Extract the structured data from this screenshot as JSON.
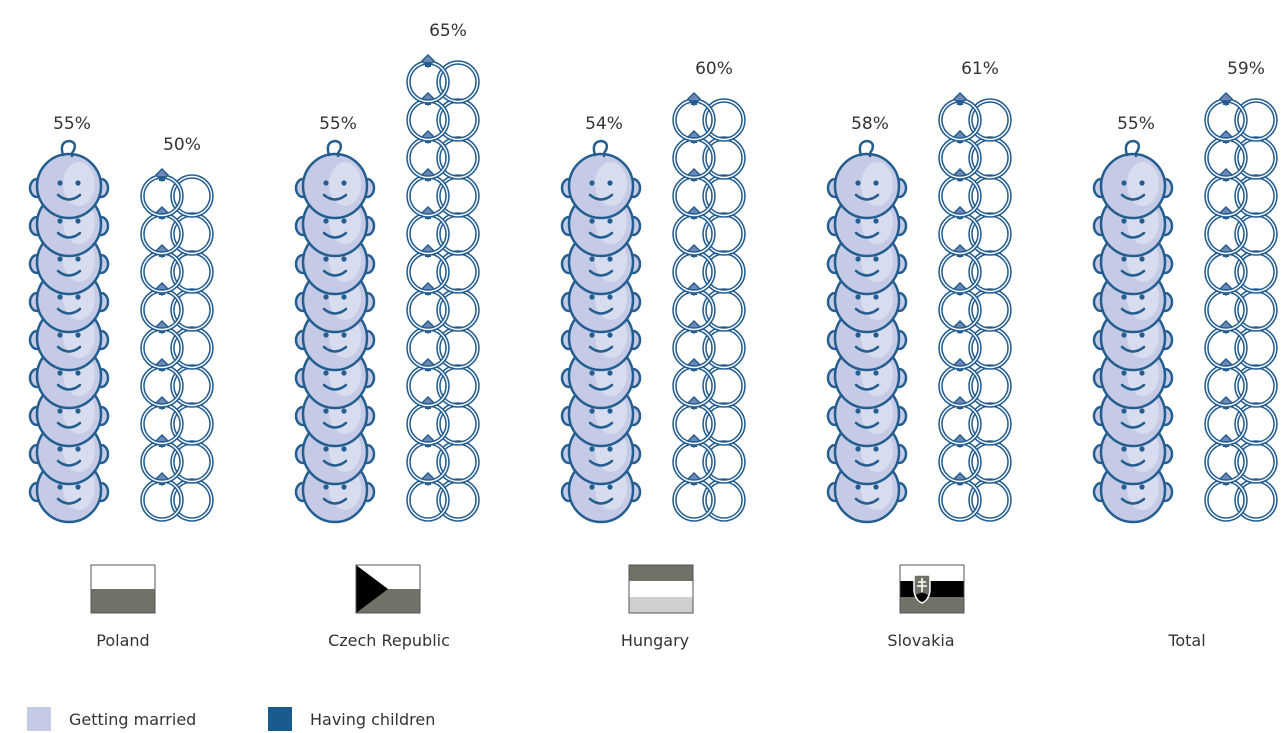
{
  "chart_data": {
    "type": "bar",
    "categories": [
      "Poland",
      "Czech Republic",
      "Hungary",
      "Slovakia",
      "Total"
    ],
    "series": [
      {
        "name": "Getting married",
        "values": [
          55,
          55,
          54,
          58,
          55
        ],
        "labels": [
          "55%",
          "55%",
          "54%",
          "58%",
          "55%"
        ],
        "color": "#c5cae6"
      },
      {
        "name": "Having children",
        "values": [
          50,
          65,
          60,
          61,
          59
        ],
        "labels": [
          "50%",
          "65%",
          "60%",
          "61%",
          "59%"
        ],
        "color": "#1a5a8c"
      }
    ],
    "unit": "%",
    "grid": false,
    "legend_placement": "bottom-left"
  },
  "colors": {
    "face_fill": "#c5cae6",
    "outline": "#245d8f",
    "ring": "#245d8f",
    "text": "#333333"
  },
  "icons": {
    "married_series": "baby-face-icon",
    "children_series": "wedding-rings-icon"
  }
}
